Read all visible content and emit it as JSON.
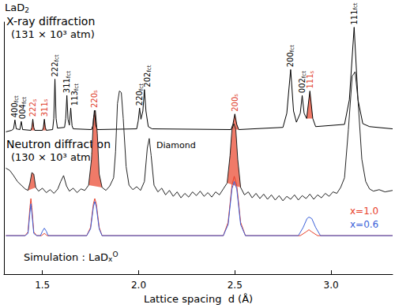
{
  "chart_data": {
    "type": "line",
    "title": {
      "text": "LaD",
      "sub": "2"
    },
    "x_label": "Lattice spacing  d (Å)",
    "xlim": [
      1.3,
      3.32
    ],
    "xticks": [
      1.5,
      {
        "value": 2,
        "label": "2.0"
      },
      2.5,
      {
        "value": 3,
        "label": "3.0"
      }
    ],
    "ylim": [
      5,
      345
    ],
    "tick_labels": "x",
    "series": [
      {
        "name": "X-ray diffraction",
        "subtitle": "(131 × 10³ atm)",
        "color": "#000000",
        "x": [
          1.31,
          1.34,
          1.35,
          1.357,
          1.364,
          1.383,
          1.39,
          1.397,
          1.44,
          1.445,
          1.45,
          1.455,
          1.46,
          1.5,
          1.505,
          1.51,
          1.515,
          1.52,
          1.553,
          1.559,
          1.565,
          1.571,
          1.578,
          1.615,
          1.621,
          1.627,
          1.633,
          1.64,
          1.647,
          1.654,
          1.66,
          1.755,
          1.763,
          1.77,
          1.777,
          1.785,
          1.99,
          1.998,
          2.005,
          2.012,
          2.022,
          2.03,
          2.038,
          2.05,
          2.07,
          2.48,
          2.49,
          2.5,
          2.51,
          2.52,
          2.75,
          2.77,
          2.79,
          2.805,
          2.82,
          2.84,
          2.85,
          2.86,
          2.873,
          2.89,
          2.905,
          2.92,
          3.07,
          3.095,
          3.12,
          3.14,
          3.165,
          3.2,
          3.32
        ],
        "values": [
          197,
          199,
          201,
          213,
          201,
          200,
          211,
          200,
          199,
          203,
          214,
          203,
          199,
          199,
          203,
          214,
          203,
          199,
          200,
          215,
          268,
          215,
          202,
          203,
          215,
          246,
          214,
          206,
          229,
          205,
          201,
          200,
          206,
          226,
          206,
          200,
          201,
          212,
          229,
          214,
          225,
          254,
          225,
          204,
          201,
          200,
          207,
          221,
          207,
          200,
          203,
          222,
          281,
          225,
          210,
          222,
          246,
          222,
          215,
          252,
          215,
          204,
          207,
          240,
          338,
          240,
          208,
          204,
          201
        ],
        "fills": [
          [
            1.44,
            1.46
          ],
          [
            1.5,
            1.52
          ],
          [
            1.755,
            1.785
          ],
          [
            2.48,
            2.52
          ],
          [
            2.873,
            2.905
          ]
        ]
      },
      {
        "name": "Neutron diffraction",
        "subtitle": "(130 × 10³ atm)",
        "color": "#222222",
        "x": [
          1.31,
          1.33,
          1.35,
          1.37,
          1.39,
          1.41,
          1.425,
          1.435,
          1.445,
          1.455,
          1.465,
          1.48,
          1.5,
          1.52,
          1.54,
          1.56,
          1.58,
          1.595,
          1.61,
          1.625,
          1.64,
          1.66,
          1.68,
          1.7,
          1.72,
          1.74,
          1.755,
          1.765,
          1.775,
          1.785,
          1.795,
          1.81,
          1.83,
          1.85,
          1.87,
          1.88,
          1.89,
          1.9,
          1.91,
          1.92,
          1.935,
          1.95,
          1.97,
          1.99,
          2.01,
          2.03,
          2.045,
          2.055,
          2.065,
          2.08,
          2.1,
          2.12,
          2.14,
          2.16,
          2.18,
          2.2,
          2.22,
          2.24,
          2.26,
          2.28,
          2.3,
          2.32,
          2.34,
          2.36,
          2.38,
          2.4,
          2.42,
          2.44,
          2.46,
          2.475,
          2.485,
          2.495,
          2.505,
          2.515,
          2.53,
          2.55,
          2.57,
          2.59,
          2.61,
          2.63,
          2.65,
          2.67,
          2.69,
          2.71,
          2.73,
          2.75,
          2.77,
          2.79,
          2.81,
          2.83,
          2.85,
          2.87,
          2.89,
          2.91,
          2.93,
          2.95,
          2.97,
          2.99,
          3.01,
          3.03,
          3.05,
          3.07,
          3.09,
          3.11,
          3.125,
          3.14,
          3.16,
          3.18,
          3.2,
          3.22,
          3.25,
          3.28,
          3.32
        ],
        "values": [
          148,
          145,
          138,
          130,
          125,
          120,
          118,
          128,
          142,
          140,
          122,
          117,
          121,
          115,
          119,
          114,
          120,
          130,
          138,
          124,
          117,
          121,
          115,
          120,
          118,
          125,
          160,
          215,
          226,
          195,
          140,
          122,
          118,
          124,
          135,
          170,
          235,
          252,
          250,
          215,
          150,
          125,
          119,
          123,
          118,
          130,
          175,
          188,
          165,
          125,
          116,
          121,
          112,
          118,
          110,
          116,
          108,
          114,
          109,
          116,
          111,
          117,
          110,
          115,
          109,
          116,
          112,
          120,
          128,
          165,
          200,
          208,
          200,
          160,
          122,
          112,
          116,
          108,
          114,
          107,
          113,
          106,
          112,
          105,
          111,
          104,
          110,
          106,
          112,
          105,
          111,
          107,
          113,
          106,
          112,
          108,
          114,
          110,
          116,
          114,
          122,
          135,
          200,
          272,
          278,
          240,
          160,
          130,
          120,
          117,
          119,
          116,
          118
        ],
        "fills": [
          [
            1.425,
            1.465
          ],
          [
            1.74,
            1.81
          ],
          [
            2.46,
            2.53
          ]
        ]
      },
      {
        "name": "x=1.0",
        "color": "#e8402a",
        "x": [
          1.31,
          1.41,
          1.425,
          1.435,
          1.44,
          1.445,
          1.455,
          1.47,
          1.495,
          1.505,
          1.51,
          1.515,
          1.525,
          1.73,
          1.75,
          1.765,
          1.772,
          1.78,
          1.795,
          1.81,
          2.44,
          2.465,
          2.485,
          2.497,
          2.51,
          2.53,
          2.555,
          2.84,
          2.87,
          2.885,
          2.9,
          2.93,
          3.32
        ],
        "values": [
          57,
          57,
          62,
          95,
          107,
          95,
          62,
          57,
          57,
          59,
          60,
          59,
          57,
          57,
          68,
          100,
          107,
          100,
          68,
          57,
          57,
          75,
          125,
          137,
          125,
          75,
          57,
          57,
          62,
          65,
          62,
          57,
          57
        ]
      },
      {
        "name": "x=0.6",
        "color": "#3a5fd9",
        "x": [
          1.31,
          1.41,
          1.425,
          1.435,
          1.44,
          1.445,
          1.455,
          1.47,
          1.49,
          1.5,
          1.51,
          1.52,
          1.53,
          1.73,
          1.75,
          1.765,
          1.772,
          1.78,
          1.795,
          1.81,
          2.44,
          2.465,
          2.485,
          2.497,
          2.51,
          2.53,
          2.555,
          2.83,
          2.855,
          2.875,
          2.885,
          2.9,
          2.92,
          2.945,
          3.32
        ],
        "values": [
          57,
          57,
          60,
          88,
          100,
          88,
          60,
          57,
          57,
          63,
          67,
          63,
          57,
          57,
          66,
          96,
          103,
          96,
          66,
          57,
          57,
          72,
          120,
          130,
          120,
          72,
          57,
          57,
          68,
          80,
          82,
          80,
          68,
          57,
          57
        ]
      }
    ],
    "annotations": {
      "peaks": [
        {
          "hkl": "400",
          "phase": "fct",
          "d": 1.357
        },
        {
          "hkl": "004",
          "phase": "fct",
          "d": 1.39
        },
        {
          "hkl": "222",
          "phase": "s",
          "d": 1.45
        },
        {
          "hkl": "311",
          "phase": "s",
          "d": 1.51
        },
        {
          "hkl": "222",
          "phase": "fct",
          "d": 1.565
        },
        {
          "hkl": "311",
          "phase": "fct",
          "d": 1.627
        },
        {
          "hkl": "113",
          "phase": "fct",
          "d": 1.647
        },
        {
          "hkl": "220",
          "phase": "s",
          "d": 1.77
        },
        {
          "hkl": "220",
          "phase": "fct",
          "d": 2.005
        },
        {
          "hkl": "202",
          "phase": "fct",
          "d": 2.03
        },
        {
          "hkl": "200",
          "phase": "s",
          "d": 2.5
        },
        {
          "hkl": "200",
          "phase": "fct",
          "d": 2.79
        },
        {
          "hkl": "002",
          "phase": "fct",
          "d": 2.85
        },
        {
          "hkl": "111",
          "phase": "s",
          "d": 2.89
        },
        {
          "hkl": "111",
          "phase": "fct",
          "d": 3.12
        }
      ],
      "diamond": "Diamond",
      "simulation": {
        "text": "Simulation : LaD",
        "sub": "x",
        "sup": "O"
      }
    }
  }
}
